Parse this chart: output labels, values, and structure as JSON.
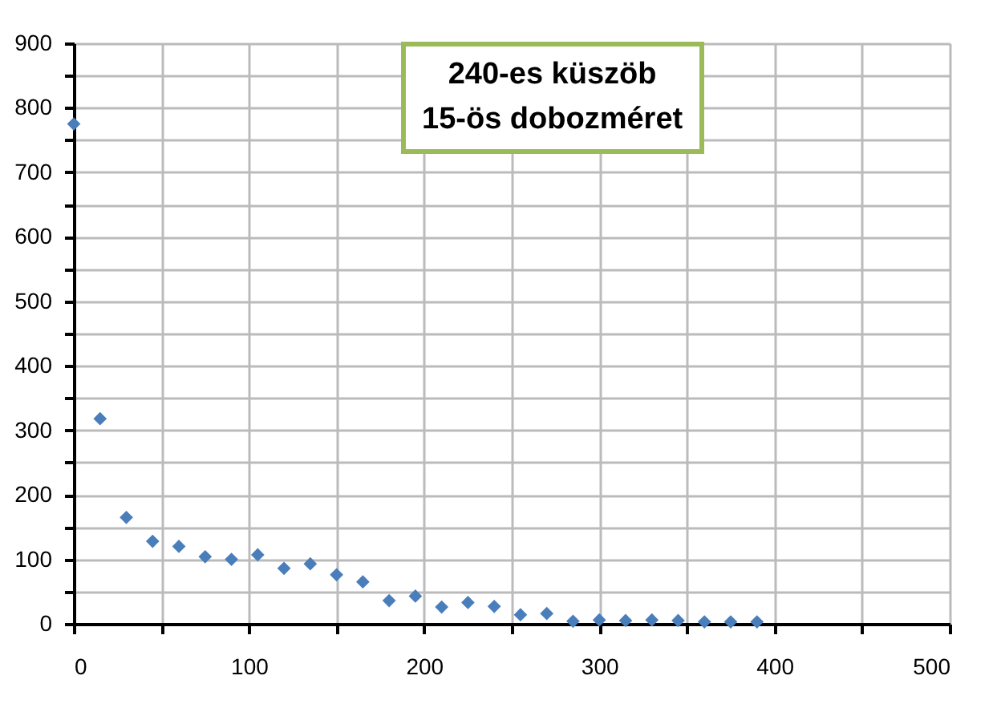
{
  "chart_data": {
    "type": "scatter",
    "annotations": [
      "240-es küszöb",
      "15-ös dobozméret"
    ],
    "x": [
      0,
      15,
      30,
      45,
      60,
      75,
      90,
      105,
      120,
      135,
      150,
      165,
      180,
      195,
      210,
      225,
      240,
      255,
      270,
      285,
      300,
      315,
      330,
      345,
      360,
      375,
      390
    ],
    "series": [
      {
        "color": "#4a7ebb",
        "values": [
          775,
          318,
          165,
          128,
          120,
          104,
          100,
          107,
          86,
          93,
          76,
          65,
          36,
          43,
          26,
          33,
          27,
          14,
          16,
          4,
          6,
          5,
          6,
          5,
          3,
          3,
          3
        ]
      }
    ],
    "marker": "diamond",
    "grid": true,
    "xlim": [
      0,
      500
    ],
    "xticks": [
      0,
      {
        "value": 50,
        "label": null
      },
      100,
      {
        "value": 150,
        "label": null
      },
      200,
      {
        "value": 250,
        "label": null
      },
      300,
      {
        "value": 350,
        "label": null
      },
      400,
      {
        "value": 450,
        "label": null
      },
      500
    ],
    "ylim": [
      0,
      900
    ],
    "yticks": [
      0,
      {
        "value": 50,
        "label": null
      },
      100,
      {
        "value": 150,
        "label": null
      },
      200,
      {
        "value": 250,
        "label": null
      },
      300,
      {
        "value": 350,
        "label": null
      },
      400,
      {
        "value": 450,
        "label": null
      },
      500,
      {
        "value": 550,
        "label": null
      },
      600,
      {
        "value": 650,
        "label": null
      },
      700,
      {
        "value": 750,
        "label": null
      },
      800,
      {
        "value": 850,
        "label": null
      },
      900
    ]
  }
}
